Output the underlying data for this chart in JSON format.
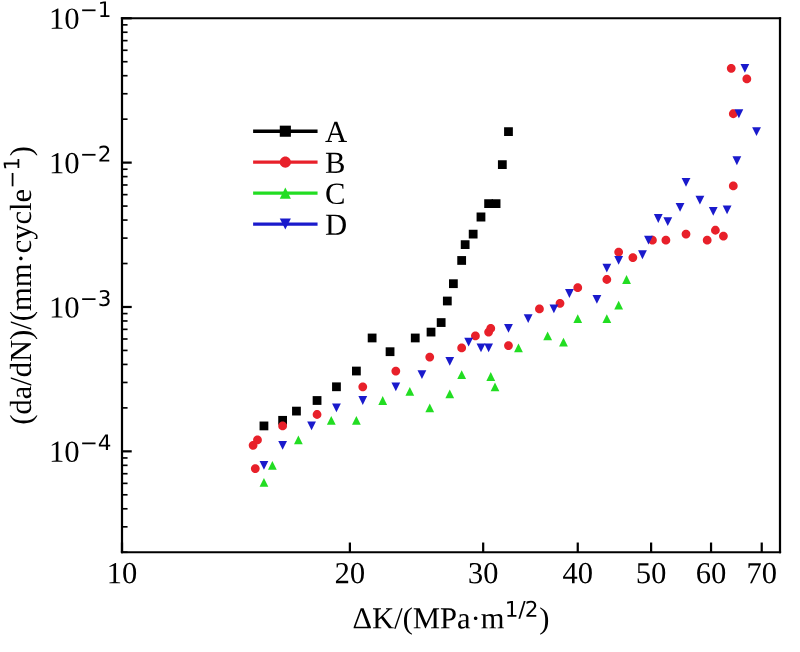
{
  "chart_data": {
    "type": "scatter",
    "xlabel": "ΔK/(MPa·m$^{1/2}$)",
    "ylabel": "(da/dN)/(mm·cycle$^{−1}$)",
    "log": "xy",
    "xlim": [
      10,
      74
    ],
    "ylim": [
      2e-05,
      0.1
    ],
    "xticks": [
      10,
      20,
      30,
      40,
      50,
      60,
      70
    ],
    "yticks": [
      {
        "value": 0.0001,
        "label": "10$^{−4}$"
      },
      {
        "value": 0.001,
        "label": "10$^{−3}$"
      },
      {
        "value": 0.01,
        "label": "10$^{−2}$"
      },
      {
        "value": 0.1,
        "label": "10$^{−1}$"
      }
    ],
    "grid": false,
    "legend": "top left",
    "series": [
      {
        "name": "A",
        "color": "#000000",
        "marker": "square",
        "x": [
          15.4,
          16.3,
          17.0,
          18.1,
          19.2,
          20.4,
          21.4,
          22.6,
          24.4,
          25.6,
          26.4,
          26.9,
          27.4,
          28.1,
          28.4,
          29.1,
          29.8,
          30.5,
          31.2,
          31.8,
          32.4
        ],
        "values": [
          0.00015,
          0.000164,
          0.00019,
          0.000225,
          0.00028,
          0.00036,
          0.00061,
          0.00049,
          0.00061,
          0.00067,
          0.00078,
          0.0011,
          0.00145,
          0.0021,
          0.0027,
          0.0032,
          0.0042,
          0.0052,
          0.0052,
          0.0097,
          0.0164
        ]
      },
      {
        "name": "B",
        "color": "#e8202a",
        "marker": "circle",
        "x": [
          15.0,
          14.9,
          15.1,
          16.3,
          18.1,
          20.8,
          23.0,
          25.5,
          28.1,
          29.3,
          30.5,
          30.7,
          32.4,
          35.6,
          37.9,
          40.0,
          43.7,
          45.3,
          47.3,
          50.2,
          52.3,
          55.6,
          59.3,
          60.8,
          62.3,
          64.2,
          64.2,
          63.8,
          66.9
        ],
        "values": [
          7.6e-05,
          0.00011,
          0.00012,
          0.00015,
          0.00018,
          0.00028,
          0.00036,
          0.00045,
          0.00052,
          0.00063,
          0.00067,
          0.00071,
          0.00054,
          0.00097,
          0.00106,
          0.00136,
          0.00155,
          0.0024,
          0.0022,
          0.0029,
          0.0029,
          0.0032,
          0.0029,
          0.0034,
          0.0031,
          0.0069,
          0.0218,
          0.045,
          0.038
        ]
      },
      {
        "name": "C",
        "color": "#22dd22",
        "marker": "triangle",
        "x": [
          15.4,
          15.8,
          17.1,
          18.9,
          20.4,
          22.1,
          24.0,
          25.5,
          27.1,
          28.1,
          30.7,
          31.1,
          33.4,
          36.5,
          38.3,
          40.0,
          43.7,
          45.3,
          46.4
        ],
        "values": [
          6.1e-05,
          8e-05,
          0.00012,
          0.000164,
          0.000164,
          0.000225,
          0.00026,
          0.0002,
          0.00025,
          0.00034,
          0.00033,
          0.00028,
          0.00052,
          0.00063,
          0.00057,
          0.00083,
          0.00083,
          0.00103,
          0.00155
        ]
      },
      {
        "name": "D",
        "color": "#1a1acc",
        "marker": "triangle_down",
        "x": [
          15.4,
          16.3,
          17.8,
          19.2,
          20.8,
          23.0,
          24.9,
          27.1,
          28.7,
          30.5,
          29.8,
          32.4,
          34.4,
          37.2,
          39.0,
          42.4,
          43.7,
          45.3,
          48.7,
          49.6,
          51.1,
          52.6,
          54.6,
          55.6,
          58.0,
          60.4,
          63.0,
          64.9,
          65.3,
          68.9,
          66.5
        ],
        "values": [
          8e-05,
          0.00011,
          0.00015,
          0.0002,
          0.000225,
          0.00028,
          0.00034,
          0.00042,
          0.00057,
          0.00052,
          0.00052,
          0.00071,
          0.00083,
          0.00097,
          0.00124,
          0.00113,
          0.00186,
          0.0021,
          0.0023,
          0.0029,
          0.0041,
          0.0039,
          0.0049,
          0.0073,
          0.0055,
          0.0046,
          0.0047,
          0.0103,
          0.0218,
          0.0164,
          0.045
        ]
      }
    ]
  }
}
